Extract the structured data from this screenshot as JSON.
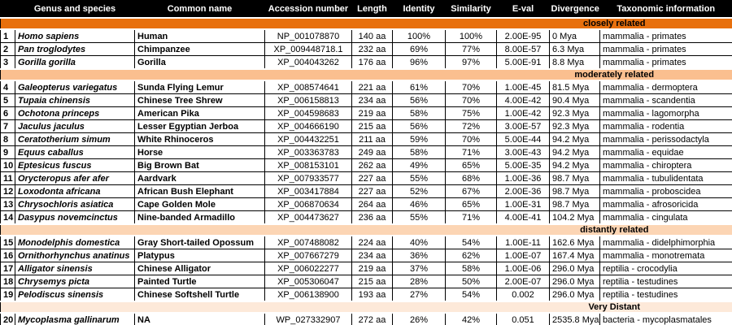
{
  "table": {
    "columns": [
      {
        "key": "num",
        "label": ""
      },
      {
        "key": "genus",
        "label": "Genus and species"
      },
      {
        "key": "common",
        "label": "Common name"
      },
      {
        "key": "accession",
        "label": "Accession number"
      },
      {
        "key": "length",
        "label": "Length"
      },
      {
        "key": "identity",
        "label": "Identity"
      },
      {
        "key": "similarity",
        "label": "Similarity"
      },
      {
        "key": "eval",
        "label": "E-val"
      },
      {
        "key": "divergence",
        "label": "Divergence"
      },
      {
        "key": "taxonomy",
        "label": "Taxonomic information"
      }
    ],
    "header_colors": {
      "background": "#000000",
      "text": "#ffffff"
    },
    "sections": [
      {
        "label": "closely related",
        "color": "#E8700D",
        "rows": [
          {
            "num": "1",
            "genus": "Homo sapiens",
            "common": "Human",
            "accession": "NP_001078870",
            "length": "140 aa",
            "identity": "100%",
            "similarity": "100%",
            "eval": "2.00E-95",
            "divergence": "0 Mya",
            "taxonomy": "mammalia - primates"
          },
          {
            "num": "2",
            "genus": "Pan troglodytes",
            "common": "Chimpanzee",
            "accession": "XP_009448718.1",
            "length": "232 aa",
            "identity": "69%",
            "similarity": "77%",
            "eval": "8.00E-57",
            "divergence": "6.3 Mya",
            "taxonomy": "mammalia - primates"
          },
          {
            "num": "3",
            "genus": "Gorilla gorilla",
            "common": "Gorilla",
            "accession": "XP_004043262",
            "length": "176 aa",
            "identity": "96%",
            "similarity": "97%",
            "eval": "5.00E-91",
            "divergence": "8.8 Mya",
            "taxonomy": "mammalia - primates"
          }
        ]
      },
      {
        "label": "moderately related",
        "color": "#FABF8F",
        "rows": [
          {
            "num": "4",
            "genus": "Galeopterus variegatus",
            "common": "Sunda Flying Lemur",
            "accession": "XP_008574641",
            "length": "221 aa",
            "identity": "61%",
            "similarity": "70%",
            "eval": "1.00E-45",
            "divergence": "81.5 Mya",
            "taxonomy": "mammalia - dermoptera"
          },
          {
            "num": "5",
            "genus": "Tupaia chinensis",
            "common": "Chinese Tree Shrew",
            "accession": "XP_006158813",
            "length": "234 aa",
            "identity": "56%",
            "similarity": "70%",
            "eval": "4.00E-42",
            "divergence": "90.4 Mya",
            "taxonomy": "mammalia - scandentia"
          },
          {
            "num": "6",
            "genus": "Ochotona princeps",
            "common": "American Pika",
            "accession": "XP_004598683",
            "length": "219 aa",
            "identity": "58%",
            "similarity": "75%",
            "eval": "1.00E-42",
            "divergence": "92.3 Mya",
            "taxonomy": "mammalia - lagomorpha"
          },
          {
            "num": "7",
            "genus": "Jaculus jaculus",
            "common": "Lesser Egyptian Jerboa",
            "accession": "XP_004666190",
            "length": "215 aa",
            "identity": "56%",
            "similarity": "72%",
            "eval": "3.00E-57",
            "divergence": "92.3 Mya",
            "taxonomy": "mammalia - rodentia"
          },
          {
            "num": "8",
            "genus": "Ceratotherium simum",
            "common": "White Rhinoceros",
            "accession": "XP_004432251",
            "length": "211 aa",
            "identity": "59%",
            "similarity": "70%",
            "eval": "5.00E-44",
            "divergence": "94.2 Mya",
            "taxonomy": "mammalia - perissodactyla"
          },
          {
            "num": "9",
            "genus": "Equus caballus",
            "common": "Horse",
            "accession": "XP_003363783",
            "length": "249 aa",
            "identity": "58%",
            "similarity": "71%",
            "eval": "3.00E-43",
            "divergence": "94.2 Mya",
            "taxonomy": "mammalia - equidae"
          },
          {
            "num": "10",
            "genus": "Eptesicus fuscus",
            "common": "Big Brown Bat",
            "accession": "XP_008153101",
            "length": "262 aa",
            "identity": "49%",
            "similarity": "65%",
            "eval": "5.00E-35",
            "divergence": "94.2 Mya",
            "taxonomy": "mammalia - chiroptera"
          },
          {
            "num": "11",
            "genus": "Orycteropus afer afer",
            "common": "Aardvark",
            "accession": "XP_007933577",
            "length": "227 aa",
            "identity": "55%",
            "similarity": "68%",
            "eval": "1.00E-36",
            "divergence": "98.7 Mya",
            "taxonomy": "mammalia - tubulidentata"
          },
          {
            "num": "12",
            "genus": "Loxodonta africana",
            "common": "African Bush Elephant",
            "accession": "XP_003417884",
            "length": "227 aa",
            "identity": "52%",
            "similarity": "67%",
            "eval": "2.00E-36",
            "divergence": "98.7 Mya",
            "taxonomy": "mammalia - proboscidea"
          },
          {
            "num": "13",
            "genus": "Chrysochloris asiatica",
            "common": "Cape Golden Mole",
            "accession": "XP_006870634",
            "length": "264 aa",
            "identity": "46%",
            "similarity": "65%",
            "eval": "1.00E-31",
            "divergence": "98.7 Mya",
            "taxonomy": "mammalia - afrosoricida"
          },
          {
            "num": "14",
            "genus": "Dasypus novemcinctus",
            "common": "Nine-banded Armadillo",
            "accession": "XP_004473627",
            "length": "236 aa",
            "identity": "55%",
            "similarity": "71%",
            "eval": "4.00E-41",
            "divergence": "104.2 Mya",
            "taxonomy": "mammalia - cingulata"
          }
        ]
      },
      {
        "label": "distantly related",
        "color": "#FCD5B4",
        "rows": [
          {
            "num": "15",
            "genus": "Monodelphis domestica",
            "common": "Gray Short-tailed Opossum",
            "accession": "XP_007488082",
            "length": "224 aa",
            "identity": "40%",
            "similarity": "54%",
            "eval": "1.00E-11",
            "divergence": "162.6 Mya",
            "taxonomy": "mammalia - didelphimorphia"
          },
          {
            "num": "16",
            "genus": "Ornithorhynchus anatinus",
            "common": "Platypus",
            "accession": "XP_007667279",
            "length": "234 aa",
            "identity": "36%",
            "similarity": "62%",
            "eval": "1.00E-07",
            "divergence": "167.4 Mya",
            "taxonomy": "mammalia - monotremata"
          },
          {
            "num": "17",
            "genus": "Alligator sinensis",
            "common": "Chinese Alligator",
            "accession": "XP_006022277",
            "length": "219 aa",
            "identity": "37%",
            "similarity": "58%",
            "eval": "1.00E-06",
            "divergence": "296.0 Mya",
            "taxonomy": "reptilia - crocodylia"
          },
          {
            "num": "18",
            "genus": "Chrysemys picta",
            "common": "Painted Turtle",
            "accession": "XP_005306047",
            "length": "215 aa",
            "identity": "28%",
            "similarity": "50%",
            "eval": "2.00E-07",
            "divergence": "296.0 Mya",
            "taxonomy": "reptilia - testudines"
          },
          {
            "num": "19",
            "genus": "Pelodiscus sinensis",
            "common": "Chinese Softshell Turtle",
            "accession": "XP_006138900",
            "length": "193 aa",
            "identity": "27%",
            "similarity": "54%",
            "eval": "0.002",
            "divergence": "296.0 Mya",
            "taxonomy": "reptilia - testudines"
          }
        ]
      },
      {
        "label": "Very Distant",
        "color": "#FDE9D9",
        "rows": [
          {
            "num": "20",
            "genus": "Mycoplasma gallinarum",
            "common": "NA",
            "accession": "WP_027332907",
            "length": "272 aa",
            "identity": "26%",
            "similarity": "42%",
            "eval": "0.051",
            "divergence": "2535.8 Mya",
            "taxonomy": "bacteria - mycoplasmatales"
          }
        ]
      }
    ]
  }
}
